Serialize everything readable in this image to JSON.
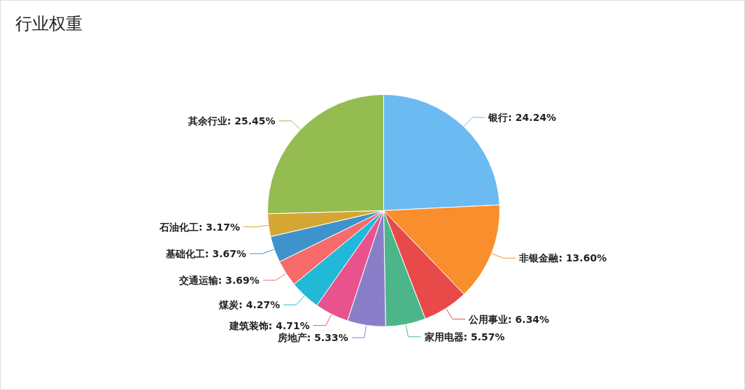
{
  "chart_data": {
    "type": "pie",
    "title": "行业权重",
    "categories": [
      "银行",
      "非银金融",
      "公用事业",
      "家用电器",
      "房地产",
      "建筑装饰",
      "煤炭",
      "交通运输",
      "基础化工",
      "石油化工",
      "其余行业"
    ],
    "values": [
      24.24,
      13.6,
      6.34,
      5.57,
      5.33,
      4.71,
      4.27,
      3.69,
      3.67,
      3.17,
      25.45
    ],
    "value_labels": [
      "24.24%",
      "13.60%",
      "6.34%",
      "5.57%",
      "5.33%",
      "4.71%",
      "4.27%",
      "3.69%",
      "3.67%",
      "3.17%",
      "25.45%"
    ],
    "colors": [
      "#6cbaf2",
      "#f98e2c",
      "#e84a4a",
      "#4cb68a",
      "#8a7ec8",
      "#e8538d",
      "#22b8d8",
      "#f76b6b",
      "#3f93cc",
      "#d5a634",
      "#94bc50"
    ],
    "legend": false
  }
}
